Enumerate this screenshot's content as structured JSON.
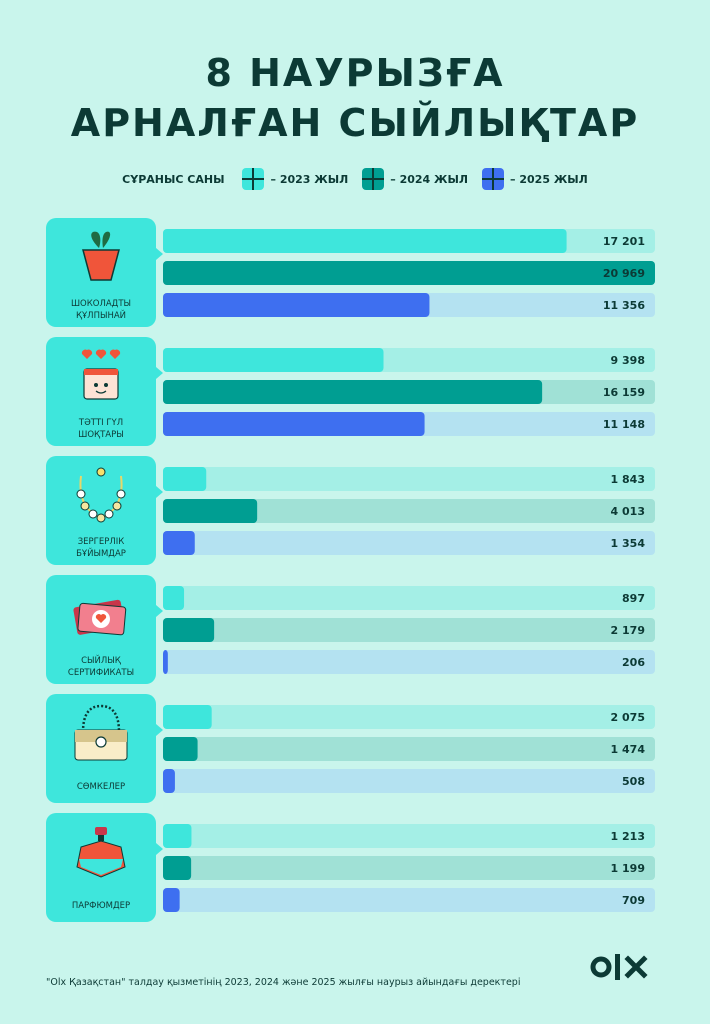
{
  "title": [
    "8 НАУРЫЗҒА",
    "АРНАЛҒАН СЫЙЛЫҚТАР"
  ],
  "legend": {
    "title": "СҰРАНЫС САНЫ",
    "items": [
      "– 2023 ЖЫЛ",
      "– 2024 ЖЫЛ",
      "– 2025 ЖЫЛ"
    ]
  },
  "colors": {
    "2023": "#3ee6dc",
    "2023_track": "#a4efe6",
    "2024": "#009e92",
    "2024_track": "#a0e1d6",
    "2025": "#3e6ff0",
    "2025_track": "#b4e2f1",
    "card": "#3ee6dc"
  },
  "chart_data": {
    "type": "bar",
    "orientation": "horizontal",
    "series": [
      {
        "name": "2023 ЖЫЛ",
        "values": [
          17201,
          9398,
          1843,
          897,
          2075,
          1213
        ],
        "labels": [
          "17 201",
          "9 398",
          "1 843",
          "897",
          "2 075",
          "1 213"
        ]
      },
      {
        "name": "2024 ЖЫЛ",
        "values": [
          20969,
          16159,
          4013,
          2179,
          1474,
          1199
        ],
        "labels": [
          "20 969",
          "16 159",
          "4 013",
          "2 179",
          "1 474",
          "1 199"
        ]
      },
      {
        "name": "2025 ЖЫЛ",
        "values": [
          11356,
          11148,
          1354,
          206,
          508,
          709
        ],
        "labels": [
          "11 356",
          "11 148",
          "1 354",
          "206",
          "508",
          "709"
        ]
      }
    ],
    "categories": [
      {
        "lines": [
          "ШОКОЛАДТЫ",
          "ҚҰЛПЫНАЙ"
        ],
        "icon": "strawberry-icon"
      },
      {
        "lines": [
          "ТӘТТІ ГҮЛ",
          "ШОҚТАРЫ"
        ],
        "icon": "flower-pot-icon"
      },
      {
        "lines": [
          "ЗЕРГЕРЛІК",
          "БҰЙЫМДАР"
        ],
        "icon": "necklace-icon"
      },
      {
        "lines": [
          "СЫЙЛЫҚ",
          "СЕРТИФИКАТЫ"
        ],
        "icon": "gift-certificate-icon"
      },
      {
        "lines": [
          "СӨМКЕЛЕР"
        ],
        "icon": "handbag-icon"
      },
      {
        "lines": [
          "ПАРФЮМДЕР"
        ],
        "icon": "perfume-icon"
      }
    ],
    "xlim": [
      0,
      20969
    ]
  },
  "footer": "\"Olx Қазақстан\" талдау қызметінің 2023, 2024 және 2025 жылғы наурыз айындағы деректері",
  "logo": {
    "text": "olx",
    "icon": "olx-logo"
  }
}
